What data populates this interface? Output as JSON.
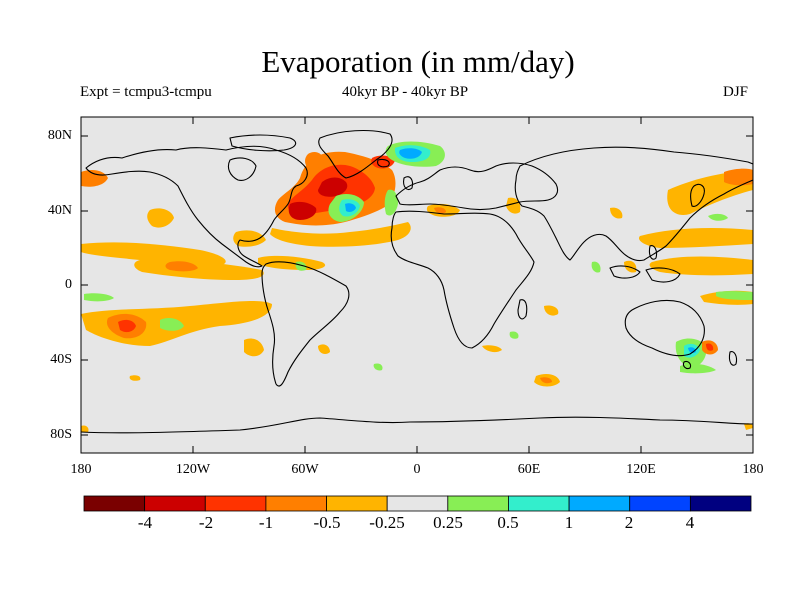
{
  "title": "Evaporation (in mm/day)",
  "experiment": "Expt = tcmpu3-tcmpu",
  "period": "40kyr BP - 40kyr BP",
  "season": "DJF",
  "lat_ticks": [
    "80N",
    "40N",
    "0",
    "40S",
    "80S"
  ],
  "lon_ticks": [
    "180",
    "120W",
    "60W",
    "0",
    "60E",
    "120E",
    "180"
  ],
  "colorbar": {
    "colors": [
      "#7a0000",
      "#cc0000",
      "#ff3300",
      "#ff7f00",
      "#ffb400",
      "#e6e6e6",
      "#88ee55",
      "#33eecc",
      "#00aaff",
      "#0044ff",
      "#000080"
    ],
    "labels": [
      "-4",
      "-2",
      "-1",
      "-0.5",
      "-0.25",
      "0.25",
      "0.5",
      "1",
      "2",
      "4"
    ]
  },
  "colors": {
    "ocean_background": "#e6e6e6",
    "coastline": "#000000"
  },
  "features": [
    {
      "name": "north-atlantic-strong-negative",
      "level": "-2",
      "color": "#cc0000"
    },
    {
      "name": "north-atlantic-negative",
      "level": "-1",
      "color": "#ff3300"
    },
    {
      "name": "labrador-positive",
      "level": "2",
      "color": "#00aaff"
    },
    {
      "name": "pacific-negative-bands",
      "level": "-0.25",
      "color": "#ffb400"
    },
    {
      "name": "australia-positive",
      "level": "0.5",
      "color": "#88ee55"
    }
  ]
}
